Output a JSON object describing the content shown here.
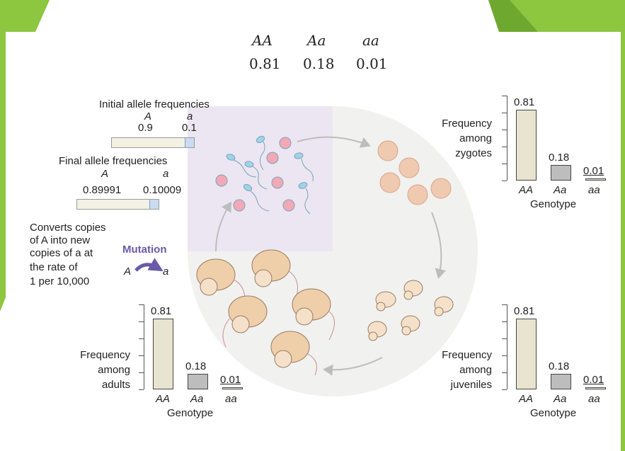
{
  "header": {
    "genotypes": [
      "AA",
      "Aa",
      "aa"
    ],
    "frequencies": [
      "0.81",
      "0.18",
      "0.01"
    ]
  },
  "initial": {
    "title": "Initial allele frequencies",
    "allele_A": "A",
    "allele_a": "a",
    "freq_A": "0.9",
    "freq_a": "0.1",
    "fraction_a": 0.1
  },
  "final": {
    "title": "Final allele frequencies",
    "allele_A": "A",
    "allele_a": "a",
    "freq_A": "0.89991",
    "freq_a": "0.10009",
    "fraction_a": 0.10009
  },
  "mutation": {
    "desc_lines": [
      "Converts copies",
      "of A into new",
      "copies of a at",
      "the rate of",
      "1 per 10,000"
    ],
    "label": "Mutation",
    "from": "A",
    "to": "a"
  },
  "colors": {
    "slide_green": "#8dc63f",
    "mutation_purple": "#6a5aa8",
    "zygote_fill": "#efc9b0",
    "egg_fill": "#f2a9b5",
    "sperm_fill": "#9fd4e8",
    "quadrant_lavender": "#ece6f2",
    "circle_gray": "#f1f1f0",
    "bar_AA": "#e8e4d0",
    "bar_Aa": "#bdbdbd",
    "bar_aa": "#f3f1e3"
  },
  "chart_data": [
    {
      "type": "bar",
      "title_lines": [
        "Frequency",
        "among",
        "zygotes"
      ],
      "categories": [
        "AA",
        "Aa",
        "aa"
      ],
      "values": [
        0.81,
        0.18,
        0.01
      ],
      "value_labels": [
        "0.81",
        "0.18",
        "0.01"
      ],
      "xlabel": "Genotype",
      "ylim": [
        0,
        0.81
      ]
    },
    {
      "type": "bar",
      "title_lines": [
        "Frequency",
        "among",
        "juveniles"
      ],
      "categories": [
        "AA",
        "Aa",
        "aa"
      ],
      "values": [
        0.81,
        0.18,
        0.01
      ],
      "value_labels": [
        "0.81",
        "0.18",
        "0.01"
      ],
      "xlabel": "Genotype",
      "ylim": [
        0,
        0.81
      ]
    },
    {
      "type": "bar",
      "title_lines": [
        "Frequency",
        "among",
        "adults"
      ],
      "categories": [
        "AA",
        "Aa",
        "aa"
      ],
      "values": [
        0.81,
        0.18,
        0.01
      ],
      "value_labels": [
        "0.81",
        "0.18",
        "0.01"
      ],
      "xlabel": "Genotype",
      "ylim": [
        0,
        0.81
      ]
    }
  ]
}
